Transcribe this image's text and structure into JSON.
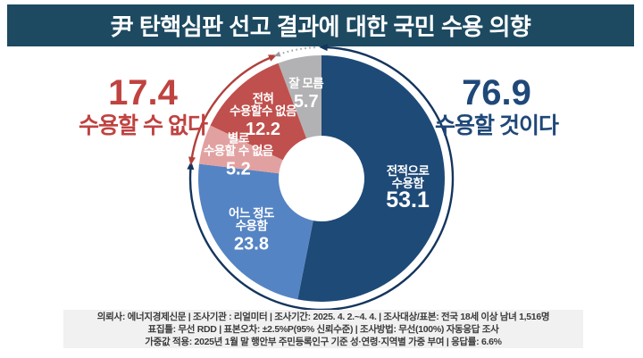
{
  "header": {
    "title": "尹 탄핵심판 선고 결과에 대한 국민 수용 의향",
    "bg_color": "#1d4a61",
    "text_color": "#ffffff"
  },
  "chart_data": {
    "type": "pie",
    "subtype": "donut",
    "title": "尹 탄핵심판 선고 결과에 대한 국민 수용 의향",
    "unit": "%",
    "direction": "clockwise",
    "start_angle_deg": 0,
    "segments": [
      {
        "label": "전적으로 수용함",
        "label_lines": [
          "전적으로",
          "수용함"
        ],
        "value": 53.1,
        "color": "#1e4a78"
      },
      {
        "label": "어느 정도 수용함",
        "label_lines": [
          "어느 정도",
          "수용함"
        ],
        "value": 23.8,
        "color": "#5584c4"
      },
      {
        "label": "별로 수용할 수 없음",
        "label_lines": [
          "별로",
          "수용할 수 없음"
        ],
        "value": 5.2,
        "color": "#e2a1a1"
      },
      {
        "label": "전혀 수용할수 없음",
        "label_lines": [
          "전혀",
          "수용할수 없음"
        ],
        "value": 12.2,
        "color": "#c0504d"
      },
      {
        "label": "잘 모름",
        "label_lines": [
          "잘 모름"
        ],
        "value": 5.7,
        "color": "#b2b2b4"
      }
    ],
    "groups": [
      {
        "id": "accept",
        "label": "수용할 것이다",
        "value": "76.9",
        "color": "#1f4878",
        "arc_color": "#14355e",
        "segment_indexes": [
          0,
          1
        ],
        "arc_style": "solid"
      },
      {
        "id": "reject",
        "label": "수용할 수 없다",
        "value": "17.4",
        "color": "#bf4340",
        "arc_color": "#b0413c",
        "segment_indexes": [
          2,
          3
        ],
        "arc_style": "solid"
      },
      {
        "id": "unknown",
        "label": "잘 모름",
        "value": "5.7",
        "arc_color": "#9b9b9f",
        "segment_indexes": [
          4
        ],
        "arc_style": "dashed"
      }
    ],
    "label_text_color": "#ffffff"
  },
  "footer": {
    "lines": [
      "의뢰사: 에너지경제신문 | 조사기관 : 리얼미터  |  조사기간: 2025. 4. 2.~4. 4. | 조사대상/표본: 전국 18세 이상 남녀 1,516명",
      "표집틀: 무선 RDD | 표본오차: ±2.5%P(95% 신뢰수준) | 조사방법: 무선(100%) 자동응답 조사",
      "가중값 적용: 2025년 1월 말 행안부 주민등록인구 기준 성·연령·지역별 가중 부여 | 응답률: 6.6%"
    ]
  }
}
